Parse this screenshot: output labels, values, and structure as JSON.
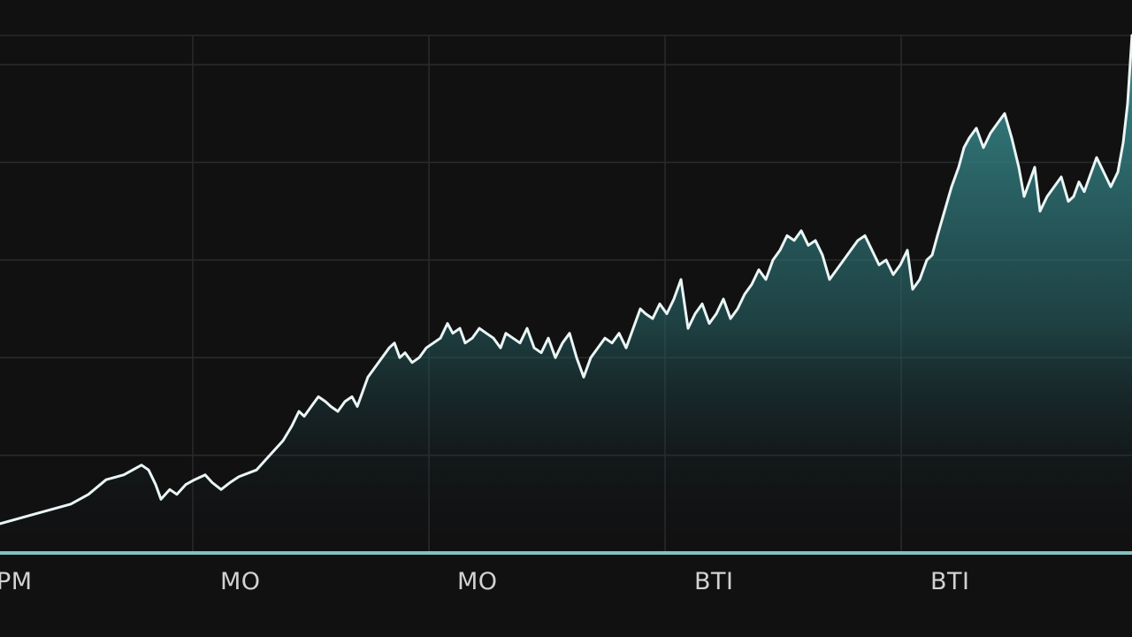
{
  "chart_data": {
    "type": "area",
    "title": "",
    "xlabel": "",
    "ylabel": "",
    "xlim": [
      0,
      1280
    ],
    "ylim": [
      0,
      5.3
    ],
    "grid": true,
    "x_tick_labels": [
      "PM",
      "MO",
      "MO",
      "BTI",
      "BTI"
    ],
    "x_tick_positions": [
      0,
      272,
      540,
      807,
      1074
    ],
    "x_gridlines": [
      218,
      485,
      752,
      1019
    ],
    "y_gridlines": [
      1,
      2,
      3,
      4,
      5
    ],
    "series": [
      {
        "x": [
          0,
          40,
          80,
          100,
          120,
          140,
          160,
          168,
          176,
          182,
          192,
          200,
          210,
          220,
          232,
          240,
          250,
          260,
          270,
          290,
          300,
          310,
          320,
          330,
          338,
          344,
          352,
          360,
          368,
          374,
          382,
          390,
          398,
          404,
          410,
          416,
          424,
          432,
          440,
          446,
          452,
          458,
          466,
          474,
          482,
          490,
          498,
          506,
          512,
          520,
          526,
          534,
          542,
          550,
          558,
          566,
          572,
          580,
          588,
          596,
          604,
          612,
          620,
          628,
          636,
          644,
          652,
          660,
          668,
          676,
          684,
          692,
          700,
          708,
          716,
          724,
          730,
          738,
          746,
          754,
          762,
          770,
          778,
          786,
          794,
          802,
          810,
          818,
          826,
          834,
          842,
          850,
          858,
          866,
          874,
          882,
          890,
          898,
          906,
          914,
          922,
          930,
          938,
          946,
          954,
          962,
          970,
          978,
          986,
          994,
          1002,
          1010,
          1018,
          1026,
          1032,
          1040,
          1048,
          1054,
          1060,
          1068,
          1076,
          1084,
          1090,
          1096,
          1104,
          1112,
          1120,
          1128,
          1136,
          1144,
          1152,
          1158,
          1164,
          1170,
          1176,
          1184,
          1192,
          1200,
          1208,
          1214,
          1220,
          1226,
          1232,
          1240,
          1248,
          1256,
          1264,
          1270,
          1275,
          1280
        ],
        "values": [
          0.3,
          0.4,
          0.5,
          0.6,
          0.75,
          0.8,
          0.9,
          0.85,
          0.7,
          0.55,
          0.65,
          0.6,
          0.7,
          0.75,
          0.8,
          0.72,
          0.65,
          0.72,
          0.78,
          0.85,
          0.95,
          1.05,
          1.15,
          1.3,
          1.45,
          1.4,
          1.5,
          1.6,
          1.55,
          1.5,
          1.45,
          1.55,
          1.6,
          1.5,
          1.65,
          1.8,
          1.9,
          2.0,
          2.1,
          2.15,
          2.0,
          2.05,
          1.95,
          2.0,
          2.1,
          2.15,
          2.2,
          2.35,
          2.25,
          2.3,
          2.15,
          2.2,
          2.3,
          2.25,
          2.2,
          2.1,
          2.25,
          2.2,
          2.15,
          2.3,
          2.1,
          2.05,
          2.2,
          2.0,
          2.15,
          2.25,
          2.0,
          1.8,
          2.0,
          2.1,
          2.2,
          2.15,
          2.25,
          2.1,
          2.3,
          2.5,
          2.45,
          2.4,
          2.55,
          2.45,
          2.6,
          2.8,
          2.3,
          2.45,
          2.55,
          2.35,
          2.45,
          2.6,
          2.4,
          2.5,
          2.65,
          2.75,
          2.9,
          2.8,
          3.0,
          3.1,
          3.25,
          3.2,
          3.3,
          3.15,
          3.2,
          3.05,
          2.8,
          2.9,
          3.0,
          3.1,
          3.2,
          3.25,
          3.1,
          2.95,
          3.0,
          2.85,
          2.95,
          3.1,
          2.7,
          2.8,
          3.0,
          3.05,
          3.25,
          3.5,
          3.75,
          3.95,
          4.15,
          4.25,
          4.35,
          4.15,
          4.3,
          4.4,
          4.5,
          4.25,
          3.95,
          3.65,
          3.8,
          3.95,
          3.5,
          3.65,
          3.75,
          3.85,
          3.6,
          3.65,
          3.8,
          3.7,
          3.85,
          4.05,
          3.9,
          3.75,
          3.9,
          4.2,
          4.6,
          5.3
        ]
      }
    ],
    "colors": {
      "background": "#111112",
      "grid": "#2a2b2d",
      "line": "#eaf6f5",
      "fill_top": "#3b9295",
      "fill_bottom": "#111112",
      "axis": "#7fc3c1",
      "tick_text": "#d2d2d2"
    }
  }
}
